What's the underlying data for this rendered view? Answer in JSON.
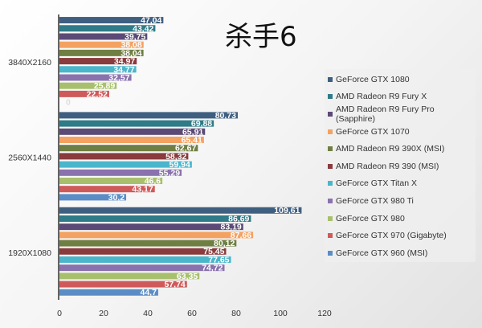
{
  "chart_data": {
    "type": "bar",
    "orientation": "horizontal",
    "title": "杀手6",
    "categories": [
      "3840X2160",
      "2560X1440",
      "1920X1080"
    ],
    "xlim": [
      0,
      120
    ],
    "xticks": [
      0,
      20,
      40,
      60,
      80,
      100,
      120
    ],
    "grid": false,
    "legend_position": "right",
    "series": [
      {
        "name": "GeForce GTX 1080",
        "color": "#3f5f80",
        "values": [
          47.04,
          80.73,
          109.61
        ],
        "labels": [
          "47,04",
          "80,73",
          "109,61"
        ]
      },
      {
        "name": "AMD Radeon R9 Fury X",
        "color": "#2f7b88",
        "values": [
          43.42,
          69.88,
          86.69
        ],
        "labels": [
          "43,42",
          "69,88",
          "86,69"
        ]
      },
      {
        "name": "AMD Radeon R9 Fury Pro (Sapphire)",
        "color": "#5b4a76",
        "values": [
          39.75,
          65.91,
          83.19
        ],
        "labels": [
          "39,75",
          "65,91",
          "83,19"
        ]
      },
      {
        "name": "GeForce GTX 1070",
        "color": "#f4a261",
        "values": [
          38.08,
          65.41,
          87.66
        ],
        "labels": [
          "38,08",
          "65,41",
          "87,66"
        ]
      },
      {
        "name": "AMD Radeon R9 390X (MSI)",
        "color": "#6f7f43",
        "values": [
          38.04,
          62.67,
          80.12
        ],
        "labels": [
          "38,04",
          "62,67",
          "80,12"
        ]
      },
      {
        "name": "AMD Radeon R9 390 (MSI)",
        "color": "#8a3b3d",
        "values": [
          34.97,
          58.32,
          75.45
        ],
        "labels": [
          "34,97",
          "58,32",
          "75,45"
        ]
      },
      {
        "name": "GeForce GTX Titan X",
        "color": "#4bb6cb",
        "values": [
          34.77,
          59.94,
          77.65
        ],
        "labels": [
          "34,77",
          "59,94",
          "77,65"
        ]
      },
      {
        "name": "GeForce GTX 980 Ti",
        "color": "#8a72ae",
        "values": [
          32.57,
          55.29,
          74.72
        ],
        "labels": [
          "32,57",
          "55,29",
          "74,72"
        ]
      },
      {
        "name": "GeForce GTX 980",
        "color": "#a8c06e",
        "values": [
          25.89,
          46.6,
          63.35
        ],
        "labels": [
          "25,89",
          "46,6",
          "63,35"
        ]
      },
      {
        "name": "GeForce GTX 970 (Gigabyte)",
        "color": "#cf5a5a",
        "values": [
          22.52,
          43.17,
          57.74
        ],
        "labels": [
          "22,52",
          "43,17",
          "57,74"
        ]
      },
      {
        "name": "GeForce GTX 960 (MSI)",
        "color": "#5b8cc5",
        "values": [
          0,
          30.2,
          44.7
        ],
        "labels": [
          "0",
          "30,2",
          "44,7"
        ]
      }
    ]
  }
}
